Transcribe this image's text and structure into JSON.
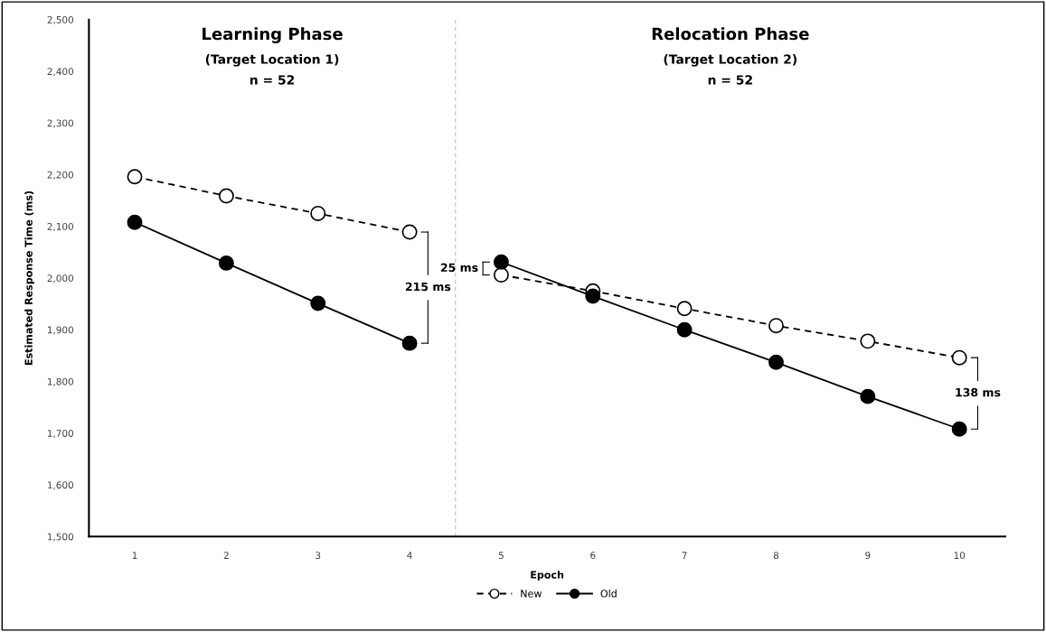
{
  "chart_data": {
    "type": "line",
    "x": [
      1,
      2,
      3,
      4,
      4.5,
      5,
      6,
      7,
      8,
      9,
      10
    ],
    "xlim": [
      0.5,
      10.5
    ],
    "xticks": [
      1,
      2,
      3,
      4,
      5,
      6,
      7,
      8,
      9,
      10
    ],
    "ylim": [
      1500,
      2500
    ],
    "yticks": [
      {
        "value": 1500,
        "label": "1,500"
      },
      {
        "value": 1600,
        "label": "1,600"
      },
      {
        "value": 1700,
        "label": "1,700"
      },
      {
        "value": 1800,
        "label": "1,800"
      },
      {
        "value": 1900,
        "label": "1,900"
      },
      {
        "value": 2000,
        "label": "2,000"
      },
      {
        "value": 2100,
        "label": "2,100"
      },
      {
        "value": 2200,
        "label": "2,200"
      },
      {
        "value": 2300,
        "label": "2,300"
      },
      {
        "value": 2400,
        "label": "2,400"
      },
      {
        "value": 2500,
        "label": "2,500"
      }
    ],
    "xlabel": "Epoch",
    "ylabel": "Estimated Response Time (ms)",
    "series": [
      {
        "name": "New",
        "color": "#ffffff",
        "line_style": "dashed",
        "values": [
          2196,
          2159,
          2125,
          2089,
          null,
          2006,
          1975,
          1941,
          1908,
          1878,
          1846
        ]
      },
      {
        "name": "Old",
        "color": "#000000",
        "line_style": "solid",
        "values": [
          2108,
          2029,
          1951,
          1874,
          null,
          2031,
          1965,
          1900,
          1837,
          1771,
          1708
        ]
      }
    ],
    "marker": "circle",
    "grid": false,
    "legend": "bottom",
    "ref_lines": [
      {
        "axis": "x",
        "value": 4.5,
        "color": "#bfbfbf",
        "line_style": "dashed"
      }
    ],
    "annotations": [
      "Learning Phase",
      "(Target Location 1)",
      "n = 52",
      "Relocation Phase",
      "(Target Location 2)",
      "n = 52",
      "215 ms",
      "25 ms",
      "138 ms"
    ]
  }
}
